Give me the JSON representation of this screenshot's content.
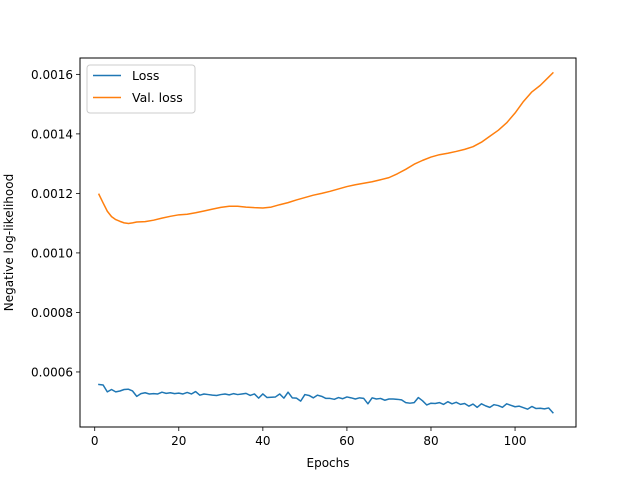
{
  "chart_data": {
    "type": "line",
    "title": "",
    "xlabel": "Epochs",
    "ylabel": "Negative log-likelihood",
    "xlim": [
      -3.5,
      114.5
    ],
    "ylim": [
      0.000415,
      0.001655
    ],
    "x_ticks": [
      0,
      20,
      40,
      60,
      80,
      100
    ],
    "x_tick_labels": [
      "0",
      "20",
      "40",
      "60",
      "80",
      "100"
    ],
    "y_ticks": [
      0.0006,
      0.0008,
      0.001,
      0.0012,
      0.0014,
      0.0016
    ],
    "y_tick_labels": [
      "0.0006",
      "0.0008",
      "0.0010",
      "0.0012",
      "0.0014",
      "0.0016"
    ],
    "grid": false,
    "legend_position": "upper-left",
    "series": [
      {
        "name": "Loss",
        "color": "#1f77b4",
        "points": [
          [
            1,
            0.000558
          ],
          [
            2,
            0.000556
          ],
          [
            3,
            0.000533
          ],
          [
            4,
            0.000541
          ],
          [
            5,
            0.000533
          ],
          [
            6,
            0.000536
          ],
          [
            7,
            0.000541
          ],
          [
            8,
            0.000542
          ],
          [
            9,
            0.000536
          ],
          [
            10,
            0.000518
          ],
          [
            11,
            0.000527
          ],
          [
            12,
            0.00053
          ],
          [
            13,
            0.000526
          ],
          [
            14,
            0.000527
          ],
          [
            15,
            0.000526
          ],
          [
            16,
            0.000532
          ],
          [
            17,
            0.000528
          ],
          [
            18,
            0.00053
          ],
          [
            19,
            0.000527
          ],
          [
            20,
            0.000529
          ],
          [
            21,
            0.000526
          ],
          [
            22,
            0.000531
          ],
          [
            23,
            0.000526
          ],
          [
            24,
            0.000534
          ],
          [
            25,
            0.000522
          ],
          [
            26,
            0.000526
          ],
          [
            27,
            0.000524
          ],
          [
            28,
            0.000522
          ],
          [
            29,
            0.000521
          ],
          [
            30,
            0.000524
          ],
          [
            31,
            0.000526
          ],
          [
            32,
            0.000523
          ],
          [
            33,
            0.000527
          ],
          [
            34,
            0.000524
          ],
          [
            35,
            0.000526
          ],
          [
            36,
            0.000528
          ],
          [
            37,
            0.000521
          ],
          [
            38,
            0.000526
          ],
          [
            39,
            0.000512
          ],
          [
            40,
            0.000526
          ],
          [
            41,
            0.000514
          ],
          [
            42,
            0.000515
          ],
          [
            43,
            0.000516
          ],
          [
            44,
            0.000526
          ],
          [
            45,
            0.000512
          ],
          [
            46,
            0.000532
          ],
          [
            47,
            0.000513
          ],
          [
            48,
            0.000512
          ],
          [
            49,
            0.000502
          ],
          [
            50,
            0.000524
          ],
          [
            51,
            0.000521
          ],
          [
            52,
            0.000513
          ],
          [
            53,
            0.000522
          ],
          [
            54,
            0.000518
          ],
          [
            55,
            0.000511
          ],
          [
            56,
            0.000511
          ],
          [
            57,
            0.000508
          ],
          [
            58,
            0.000514
          ],
          [
            59,
            0.00051
          ],
          [
            60,
            0.000516
          ],
          [
            61,
            0.000513
          ],
          [
            62,
            0.000509
          ],
          [
            63,
            0.000513
          ],
          [
            64,
            0.000511
          ],
          [
            65,
            0.000493
          ],
          [
            66,
            0.000513
          ],
          [
            67,
            0.000509
          ],
          [
            68,
            0.000511
          ],
          [
            69,
            0.000505
          ],
          [
            70,
            0.000509
          ],
          [
            71,
            0.000509
          ],
          [
            72,
            0.000508
          ],
          [
            73,
            0.000506
          ],
          [
            74,
            0.000497
          ],
          [
            75,
            0.000495
          ],
          [
            76,
            0.000497
          ],
          [
            77,
            0.000514
          ],
          [
            78,
            0.000503
          ],
          [
            79,
            0.000489
          ],
          [
            80,
            0.000495
          ],
          [
            81,
            0.000494
          ],
          [
            82,
            0.000497
          ],
          [
            83,
            0.000491
          ],
          [
            84,
            0.0005
          ],
          [
            85,
            0.000493
          ],
          [
            86,
            0.000498
          ],
          [
            87,
            0.000491
          ],
          [
            88,
            0.000494
          ],
          [
            89,
            0.000485
          ],
          [
            90,
            0.000492
          ],
          [
            91,
            0.000481
          ],
          [
            92,
            0.000493
          ],
          [
            93,
            0.000486
          ],
          [
            94,
            0.000481
          ],
          [
            95,
            0.00049
          ],
          [
            96,
            0.000487
          ],
          [
            97,
            0.000481
          ],
          [
            98,
            0.000493
          ],
          [
            99,
            0.000488
          ],
          [
            100,
            0.000483
          ],
          [
            101,
            0.000485
          ],
          [
            102,
            0.00048
          ],
          [
            103,
            0.000475
          ],
          [
            104,
            0.000484
          ],
          [
            105,
            0.000477
          ],
          [
            106,
            0.000478
          ],
          [
            107,
            0.000476
          ],
          [
            108,
            0.000479
          ],
          [
            109,
            0.000463
          ]
        ]
      },
      {
        "name": "Val. loss",
        "color": "#ff7f0e",
        "points": [
          [
            1,
            0.001197
          ],
          [
            2,
            0.001168
          ],
          [
            3,
            0.00114
          ],
          [
            4,
            0.001122
          ],
          [
            5,
            0.001112
          ],
          [
            6,
            0.001106
          ],
          [
            7,
            0.001101
          ],
          [
            8,
            0.001099
          ],
          [
            9,
            0.001101
          ],
          [
            10,
            0.001104
          ],
          [
            12,
            0.001105
          ],
          [
            14,
            0.00111
          ],
          [
            16,
            0.001117
          ],
          [
            18,
            0.001123
          ],
          [
            20,
            0.001128
          ],
          [
            22,
            0.00113
          ],
          [
            24,
            0.001135
          ],
          [
            26,
            0.001141
          ],
          [
            28,
            0.001147
          ],
          [
            30,
            0.001153
          ],
          [
            32,
            0.001157
          ],
          [
            34,
            0.001157
          ],
          [
            36,
            0.001154
          ],
          [
            38,
            0.001152
          ],
          [
            40,
            0.001151
          ],
          [
            42,
            0.001154
          ],
          [
            44,
            0.001162
          ],
          [
            46,
            0.001169
          ],
          [
            48,
            0.001178
          ],
          [
            50,
            0.001186
          ],
          [
            52,
            0.001194
          ],
          [
            54,
            0.0012
          ],
          [
            56,
            0.001207
          ],
          [
            58,
            0.001215
          ],
          [
            60,
            0.001223
          ],
          [
            62,
            0.001229
          ],
          [
            64,
            0.001234
          ],
          [
            66,
            0.001239
          ],
          [
            68,
            0.001246
          ],
          [
            70,
            0.001253
          ],
          [
            72,
            0.001266
          ],
          [
            74,
            0.001281
          ],
          [
            76,
            0.001298
          ],
          [
            78,
            0.001311
          ],
          [
            80,
            0.001322
          ],
          [
            82,
            0.00133
          ],
          [
            84,
            0.001335
          ],
          [
            86,
            0.001341
          ],
          [
            88,
            0.001348
          ],
          [
            90,
            0.001357
          ],
          [
            92,
            0.001372
          ],
          [
            94,
            0.001392
          ],
          [
            96,
            0.001412
          ],
          [
            98,
            0.001437
          ],
          [
            100,
            0.00147
          ],
          [
            102,
            0.001509
          ],
          [
            104,
            0.001541
          ],
          [
            106,
            0.001563
          ],
          [
            108,
            0.001591
          ],
          [
            109,
            0.001605
          ]
        ]
      }
    ]
  }
}
